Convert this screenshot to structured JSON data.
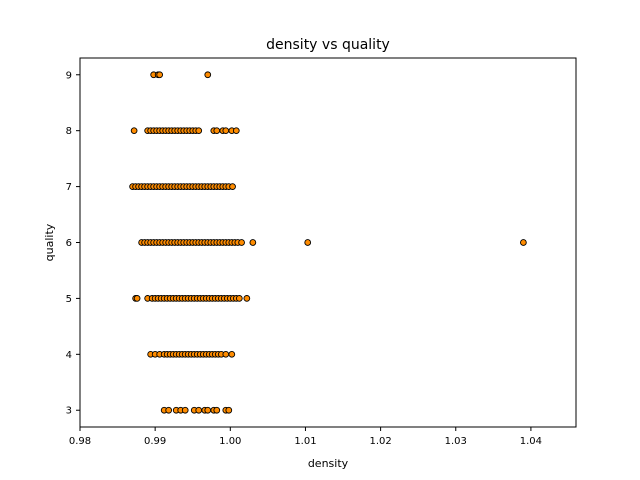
{
  "chart_data": {
    "type": "scatter",
    "title": "density vs quality",
    "xlabel": "density",
    "ylabel": "quality",
    "xlim": [
      0.98,
      1.046
    ],
    "ylim": [
      2.7,
      9.3
    ],
    "xticks": [
      0.98,
      0.99,
      1.0,
      1.01,
      1.02,
      1.03,
      1.04
    ],
    "xtick_labels": [
      "0.98",
      "0.99",
      "1.00",
      "1.01",
      "1.02",
      "1.03",
      "1.04"
    ],
    "yticks": [
      3,
      4,
      5,
      6,
      7,
      8,
      9
    ],
    "ytick_labels": [
      "3",
      "4",
      "5",
      "6",
      "7",
      "8",
      "9"
    ],
    "grid": false,
    "marker_color": "#ff8c00",
    "marker_edge_color": "#000000",
    "series": [
      {
        "points": [
          [
            0.9898,
            9
          ],
          [
            0.9904,
            9
          ],
          [
            0.9906,
            9
          ],
          [
            0.997,
            9
          ],
          [
            0.9872,
            8
          ],
          [
            0.989,
            8
          ],
          [
            0.9894,
            8
          ],
          [
            0.9898,
            8
          ],
          [
            0.9902,
            8
          ],
          [
            0.9906,
            8
          ],
          [
            0.991,
            8
          ],
          [
            0.9914,
            8
          ],
          [
            0.9918,
            8
          ],
          [
            0.9922,
            8
          ],
          [
            0.9926,
            8
          ],
          [
            0.993,
            8
          ],
          [
            0.9934,
            8
          ],
          [
            0.9938,
            8
          ],
          [
            0.9942,
            8
          ],
          [
            0.9946,
            8
          ],
          [
            0.995,
            8
          ],
          [
            0.9954,
            8
          ],
          [
            0.9958,
            8
          ],
          [
            0.9978,
            8
          ],
          [
            0.9982,
            8
          ],
          [
            0.999,
            8
          ],
          [
            0.9994,
            8
          ],
          [
            1.0002,
            8
          ],
          [
            1.0008,
            8
          ],
          [
            0.987,
            7
          ],
          [
            0.9874,
            7
          ],
          [
            0.9878,
            7
          ],
          [
            0.9882,
            7
          ],
          [
            0.9886,
            7
          ],
          [
            0.989,
            7
          ],
          [
            0.9894,
            7
          ],
          [
            0.9898,
            7
          ],
          [
            0.9902,
            7
          ],
          [
            0.9906,
            7
          ],
          [
            0.991,
            7
          ],
          [
            0.9914,
            7
          ],
          [
            0.9918,
            7
          ],
          [
            0.9922,
            7
          ],
          [
            0.9926,
            7
          ],
          [
            0.993,
            7
          ],
          [
            0.9934,
            7
          ],
          [
            0.9938,
            7
          ],
          [
            0.9942,
            7
          ],
          [
            0.9946,
            7
          ],
          [
            0.995,
            7
          ],
          [
            0.9954,
            7
          ],
          [
            0.9958,
            7
          ],
          [
            0.9962,
            7
          ],
          [
            0.9966,
            7
          ],
          [
            0.997,
            7
          ],
          [
            0.9974,
            7
          ],
          [
            0.9978,
            7
          ],
          [
            0.9982,
            7
          ],
          [
            0.9986,
            7
          ],
          [
            0.999,
            7
          ],
          [
            0.9994,
            7
          ],
          [
            0.9998,
            7
          ],
          [
            1.0003,
            7
          ],
          [
            0.9882,
            6
          ],
          [
            0.9886,
            6
          ],
          [
            0.989,
            6
          ],
          [
            0.9894,
            6
          ],
          [
            0.9898,
            6
          ],
          [
            0.9902,
            6
          ],
          [
            0.9906,
            6
          ],
          [
            0.991,
            6
          ],
          [
            0.9914,
            6
          ],
          [
            0.9918,
            6
          ],
          [
            0.9922,
            6
          ],
          [
            0.9926,
            6
          ],
          [
            0.993,
            6
          ],
          [
            0.9934,
            6
          ],
          [
            0.9938,
            6
          ],
          [
            0.9942,
            6
          ],
          [
            0.9946,
            6
          ],
          [
            0.995,
            6
          ],
          [
            0.9954,
            6
          ],
          [
            0.9958,
            6
          ],
          [
            0.9962,
            6
          ],
          [
            0.9966,
            6
          ],
          [
            0.997,
            6
          ],
          [
            0.9974,
            6
          ],
          [
            0.9978,
            6
          ],
          [
            0.9982,
            6
          ],
          [
            0.9986,
            6
          ],
          [
            0.999,
            6
          ],
          [
            0.9994,
            6
          ],
          [
            0.9998,
            6
          ],
          [
            1.0002,
            6
          ],
          [
            1.0006,
            6
          ],
          [
            1.001,
            6
          ],
          [
            1.0015,
            6
          ],
          [
            1.003,
            6
          ],
          [
            1.0103,
            6
          ],
          [
            1.039,
            6
          ],
          [
            0.9874,
            5
          ],
          [
            0.9876,
            5
          ],
          [
            0.989,
            5
          ],
          [
            0.9896,
            5
          ],
          [
            0.99,
            5
          ],
          [
            0.9904,
            5
          ],
          [
            0.9908,
            5
          ],
          [
            0.9912,
            5
          ],
          [
            0.9916,
            5
          ],
          [
            0.992,
            5
          ],
          [
            0.9924,
            5
          ],
          [
            0.9928,
            5
          ],
          [
            0.9932,
            5
          ],
          [
            0.9936,
            5
          ],
          [
            0.994,
            5
          ],
          [
            0.9944,
            5
          ],
          [
            0.9948,
            5
          ],
          [
            0.9952,
            5
          ],
          [
            0.9956,
            5
          ],
          [
            0.996,
            5
          ],
          [
            0.9964,
            5
          ],
          [
            0.9968,
            5
          ],
          [
            0.9972,
            5
          ],
          [
            0.9976,
            5
          ],
          [
            0.998,
            5
          ],
          [
            0.9984,
            5
          ],
          [
            0.9988,
            5
          ],
          [
            0.9992,
            5
          ],
          [
            0.9996,
            5
          ],
          [
            1.0,
            5
          ],
          [
            1.0004,
            5
          ],
          [
            1.0008,
            5
          ],
          [
            1.0012,
            5
          ],
          [
            1.0022,
            5
          ],
          [
            0.9894,
            4
          ],
          [
            0.99,
            4
          ],
          [
            0.9906,
            4
          ],
          [
            0.9912,
            4
          ],
          [
            0.9916,
            4
          ],
          [
            0.992,
            4
          ],
          [
            0.9924,
            4
          ],
          [
            0.9928,
            4
          ],
          [
            0.9932,
            4
          ],
          [
            0.9936,
            4
          ],
          [
            0.994,
            4
          ],
          [
            0.9944,
            4
          ],
          [
            0.9948,
            4
          ],
          [
            0.9952,
            4
          ],
          [
            0.9956,
            4
          ],
          [
            0.996,
            4
          ],
          [
            0.9964,
            4
          ],
          [
            0.9968,
            4
          ],
          [
            0.9972,
            4
          ],
          [
            0.9976,
            4
          ],
          [
            0.998,
            4
          ],
          [
            0.9984,
            4
          ],
          [
            0.9988,
            4
          ],
          [
            0.9994,
            4
          ],
          [
            1.0002,
            4
          ],
          [
            0.9912,
            3
          ],
          [
            0.9918,
            3
          ],
          [
            0.9928,
            3
          ],
          [
            0.9934,
            3
          ],
          [
            0.994,
            3
          ],
          [
            0.9952,
            3
          ],
          [
            0.9958,
            3
          ],
          [
            0.9966,
            3
          ],
          [
            0.997,
            3
          ],
          [
            0.9978,
            3
          ],
          [
            0.9982,
            3
          ],
          [
            0.9994,
            3
          ],
          [
            0.9998,
            3
          ]
        ]
      }
    ]
  }
}
